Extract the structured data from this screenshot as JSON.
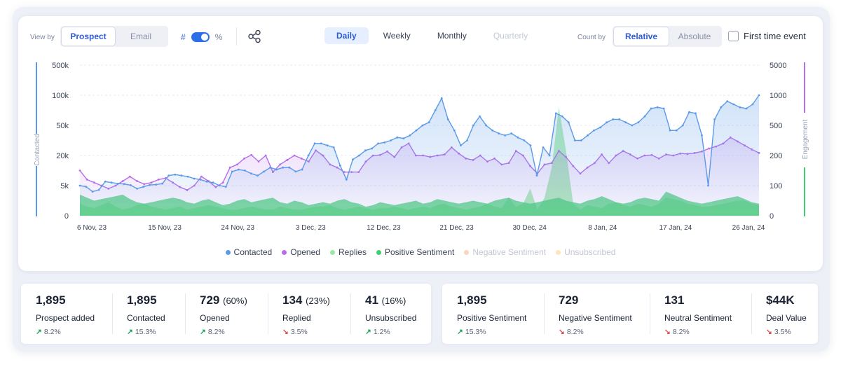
{
  "toolbar": {
    "view_by_label": "View by",
    "view_by_options": [
      "Prospect",
      "Email"
    ],
    "view_by_selected": "Prospect",
    "toggle_left": "#",
    "toggle_right": "%",
    "periods": [
      {
        "label": "Daily",
        "state": "active"
      },
      {
        "label": "Weekly",
        "state": "normal"
      },
      {
        "label": "Monthly",
        "state": "normal"
      },
      {
        "label": "Quarterly",
        "state": "disabled"
      }
    ],
    "count_by_label": "Count by",
    "count_by_options": [
      "Relative",
      "Absolute"
    ],
    "count_by_selected": "Relative",
    "first_time_label": "First time event"
  },
  "chart_data": {
    "type": "line",
    "x_ticks": [
      "6 Nov, 23",
      "15 Nov, 23",
      "24 Nov, 23",
      "3 Dec, 23",
      "12 Dec, 23",
      "21 Dec, 23",
      "30 Dec, 24",
      "8 Jan, 24",
      "17 Jan, 24",
      "26 Jan, 24"
    ],
    "y_left_ticks": [
      "500k",
      "100k",
      "50k",
      "20k",
      "5k",
      "0"
    ],
    "y_right_ticks": [
      "5000",
      "1000",
      "500",
      "200",
      "100",
      "0"
    ],
    "y_left_label": "Contacted",
    "y_right_label": "Engagement",
    "grid": true,
    "legend_position": "bottom",
    "series": [
      {
        "name": "Contacted",
        "color": "#5b9ae8",
        "axis": "left",
        "values": [
          5,
          4.8,
          4,
          4.3,
          7,
          6.5,
          6,
          5.8,
          5.2,
          4.5,
          4.8,
          5.3,
          5.5,
          6,
          10,
          10.5,
          10,
          9.5,
          8.5,
          8,
          7,
          6.5,
          5,
          4.8,
          12,
          13,
          12.5,
          11,
          10,
          12,
          14,
          13,
          14,
          14,
          12,
          13,
          20,
          32,
          32,
          30,
          28,
          15,
          8,
          18,
          20,
          25,
          27,
          32,
          33,
          35,
          38,
          37,
          40,
          45,
          50,
          55,
          75,
          95,
          60,
          45,
          30,
          35,
          50,
          65,
          50,
          45,
          42,
          40,
          42,
          38,
          35,
          30,
          10,
          28,
          20,
          70,
          65,
          55,
          35,
          35,
          40,
          45,
          48,
          55,
          60,
          60,
          55,
          50,
          55,
          65,
          78,
          80,
          78,
          45,
          45,
          50,
          72,
          70,
          40,
          5,
          60,
          80,
          90,
          85,
          80,
          78,
          85,
          100
        ]
      },
      {
        "name": "Opened",
        "color": "#b66ee8",
        "axis": "right",
        "values": [
          150,
          120,
          110,
          100,
          90,
          100,
          115,
          130,
          115,
          105,
          110,
          120,
          125,
          110,
          95,
          85,
          100,
          130,
          115,
          95,
          110,
          160,
          170,
          190,
          205,
          180,
          200,
          145,
          170,
          185,
          200,
          190,
          180,
          250,
          200,
          170,
          160,
          145,
          145,
          145,
          180,
          200,
          205,
          240,
          195,
          280,
          320,
          200,
          200,
          195,
          200,
          210,
          280,
          220,
          190,
          185,
          200,
          180,
          190,
          170,
          175,
          245,
          200,
          165,
          140,
          170,
          175,
          245,
          195,
          165,
          140,
          160,
          175,
          210,
          175,
          200,
          245,
          210,
          190,
          200,
          205,
          190,
          210,
          200,
          220,
          215,
          225,
          240,
          270,
          290,
          320,
          380,
          340,
          300,
          260,
          225
        ]
      },
      {
        "name": "Replies",
        "color": "#9be7a4",
        "axis": "right",
        "values": [
          40,
          30,
          25,
          35,
          45,
          30,
          20,
          25,
          35,
          40,
          30,
          25,
          20,
          25,
          30,
          20,
          25,
          30,
          35,
          30,
          25,
          20,
          20,
          25,
          30,
          25,
          20,
          20,
          30,
          25,
          20,
          20,
          25,
          30,
          30,
          35,
          25,
          20,
          25,
          30,
          25,
          20,
          25,
          25,
          30,
          25,
          20,
          25,
          30,
          25,
          35,
          40,
          30,
          25,
          20,
          25,
          30,
          40,
          30,
          25,
          60,
          30,
          40,
          90,
          20,
          60,
          160,
          800,
          250,
          40,
          20,
          35,
          30,
          25,
          40,
          45,
          35,
          30,
          40,
          35,
          30,
          40,
          60,
          55,
          50,
          40,
          35,
          30,
          30,
          35,
          40,
          45,
          50,
          50,
          40,
          35
        ]
      },
      {
        "name": "Positive Sentiment",
        "color": "#3fcf70",
        "axis": "right",
        "values": [
          70,
          60,
          50,
          55,
          60,
          65,
          70,
          55,
          45,
          40,
          45,
          50,
          55,
          60,
          55,
          45,
          40,
          50,
          55,
          45,
          35,
          40,
          50,
          55,
          45,
          50,
          55,
          60,
          45,
          40,
          50,
          45,
          35,
          40,
          45,
          40,
          50,
          55,
          45,
          40,
          30,
          35,
          45,
          40,
          35,
          40,
          45,
          50,
          40,
          45,
          55,
          50,
          45,
          40,
          45,
          50,
          45,
          40,
          50,
          55,
          60,
          50,
          45,
          40,
          45,
          50,
          55,
          60,
          50,
          45,
          40,
          50,
          55,
          65,
          55,
          45,
          40,
          45,
          55,
          60,
          55,
          50,
          80,
          70,
          60,
          50,
          45,
          40,
          45,
          50,
          55,
          60,
          65,
          55,
          45,
          40
        ]
      },
      {
        "name": "Negative Sentiment",
        "color": "#f7b79a",
        "axis": "right",
        "values": []
      },
      {
        "name": "Unsubscribed",
        "color": "#fbd38d",
        "axis": "right",
        "values": []
      }
    ]
  },
  "legend": [
    {
      "label": "Contacted",
      "color": "#5b9ae8",
      "active": true
    },
    {
      "label": "Opened",
      "color": "#b66ee8",
      "active": true
    },
    {
      "label": "Replies",
      "color": "#9be7a4",
      "active": true
    },
    {
      "label": "Positive Sentiment",
      "color": "#3fcf70",
      "active": true
    },
    {
      "label": "Negative Sentiment",
      "color": "#f7b79a",
      "active": false
    },
    {
      "label": "Unsubscribed",
      "color": "#fbd38d",
      "active": false
    }
  ],
  "stats_left": [
    {
      "value": "1,895",
      "sub": "",
      "name": "Prospect added",
      "delta": "8.2%",
      "dir": "up"
    },
    {
      "value": "1,895",
      "sub": "",
      "name": "Contacted",
      "delta": "15.3%",
      "dir": "up"
    },
    {
      "value": "729",
      "sub": "(60%)",
      "name": "Opened",
      "delta": "8.2%",
      "dir": "up"
    },
    {
      "value": "134",
      "sub": "(23%)",
      "name": "Replied",
      "delta": "3.5%",
      "dir": "down"
    },
    {
      "value": "41",
      "sub": "(16%)",
      "name": "Unsubscribed",
      "delta": "1.2%",
      "dir": "up"
    }
  ],
  "stats_right": [
    {
      "value": "1,895",
      "sub": "",
      "name": "Positive Sentiment",
      "delta": "15.3%",
      "dir": "up"
    },
    {
      "value": "729",
      "sub": "",
      "name": "Negative Sentiment",
      "delta": "8.2%",
      "dir": "down"
    },
    {
      "value": "131",
      "sub": "",
      "name": "Neutral Sentiment",
      "delta": "8.2%",
      "dir": "down"
    },
    {
      "value": "$44K",
      "sub": "",
      "name": "Deal Value",
      "delta": "3.5%",
      "dir": "down"
    }
  ]
}
